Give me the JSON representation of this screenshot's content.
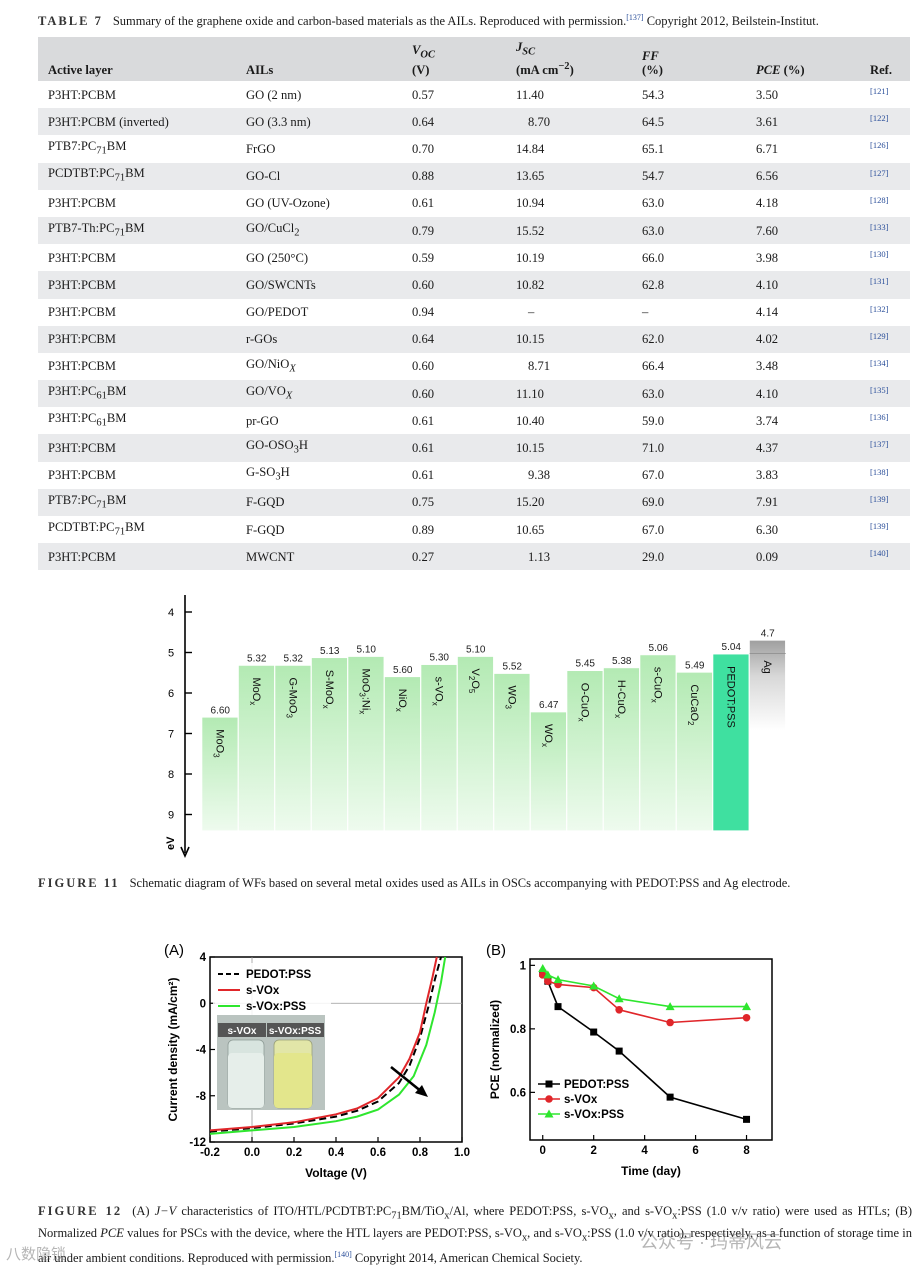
{
  "table7": {
    "label": "TABLE 7",
    "caption": "Summary of the graphene oxide and carbon-based materials as the AILs. Reproduced with permission.",
    "caption_ref": "[137]",
    "caption_tail": " Copyright 2012, Beilstein-Institut.",
    "headers": {
      "active_layer": "Active layer",
      "ails": "AILs",
      "voc": "V",
      "voc_sub": "OC",
      "voc_unit": "(V)",
      "jsc": "J",
      "jsc_sub": "SC",
      "jsc_unit": "(mA cm",
      "jsc_unit_sup": "−2",
      "jsc_unit_tail": ")",
      "ff": "FF",
      "ff_unit": "(%)",
      "pce": "PCE",
      "pce_unit": " (%)",
      "ref": "Ref."
    },
    "rows": [
      {
        "active": "P3HT:PCBM",
        "ail": "GO (2 nm)",
        "voc": "0.57",
        "jsc": "11.40",
        "ff": "54.3",
        "pce": "3.50",
        "ref": "[121]"
      },
      {
        "active": "P3HT:PCBM (inverted)",
        "ail": "GO (3.3 nm)",
        "voc": "0.64",
        "jsc": "8.70",
        "ff": "64.5",
        "pce": "3.61",
        "ref": "[122]"
      },
      {
        "active": "PTB7:PC71BM",
        "ail": "FrGO",
        "voc": "0.70",
        "jsc": "14.84",
        "ff": "65.1",
        "pce": "6.71",
        "ref": "[126]"
      },
      {
        "active": "PCDTBT:PC71BM",
        "ail": "GO-Cl",
        "voc": "0.88",
        "jsc": "13.65",
        "ff": "54.7",
        "pce": "6.56",
        "ref": "[127]"
      },
      {
        "active": "P3HT:PCBM",
        "ail": "GO (UV-Ozone)",
        "voc": "0.61",
        "jsc": "10.94",
        "ff": "63.0",
        "pce": "4.18",
        "ref": "[128]"
      },
      {
        "active": "PTB7-Th:PC71BM",
        "ail": "GO/CuCl2",
        "voc": "0.79",
        "jsc": "15.52",
        "ff": "63.0",
        "pce": "7.60",
        "ref": "[133]"
      },
      {
        "active": "P3HT:PCBM",
        "ail": "GO (250°C)",
        "voc": "0.59",
        "jsc": "10.19",
        "ff": "66.0",
        "pce": "3.98",
        "ref": "[130]"
      },
      {
        "active": "P3HT:PCBM",
        "ail": "GO/SWCNTs",
        "voc": "0.60",
        "jsc": "10.82",
        "ff": "62.8",
        "pce": "4.10",
        "ref": "[131]"
      },
      {
        "active": "P3HT:PCBM",
        "ail": "GO/PEDOT",
        "voc": "0.94",
        "jsc": "–",
        "ff": "–",
        "pce": "4.14",
        "ref": "[132]"
      },
      {
        "active": "P3HT:PCBM",
        "ail": "r-GOs",
        "voc": "0.64",
        "jsc": "10.15",
        "ff": "62.0",
        "pce": "4.02",
        "ref": "[129]"
      },
      {
        "active": "P3HT:PCBM",
        "ail": "GO/NiOX",
        "voc": "0.60",
        "jsc": "8.71",
        "ff": "66.4",
        "pce": "3.48",
        "ref": "[134]"
      },
      {
        "active": "P3HT:PC61BM",
        "ail": "GO/VOX",
        "voc": "0.60",
        "jsc": "11.10",
        "ff": "63.0",
        "pce": "4.10",
        "ref": "[135]"
      },
      {
        "active": "P3HT:PC61BM",
        "ail": "pr-GO",
        "voc": "0.61",
        "jsc": "10.40",
        "ff": "59.0",
        "pce": "3.74",
        "ref": "[136]"
      },
      {
        "active": "P3HT:PCBM",
        "ail": "GO-OSO3H",
        "voc": "0.61",
        "jsc": "10.15",
        "ff": "71.0",
        "pce": "4.37",
        "ref": "[137]"
      },
      {
        "active": "P3HT:PCBM",
        "ail": "G-SO3H",
        "voc": "0.61",
        "jsc": "9.38",
        "ff": "67.0",
        "pce": "3.83",
        "ref": "[138]"
      },
      {
        "active": "PTB7:PC71BM",
        "ail": "F-GQD",
        "voc": "0.75",
        "jsc": "15.20",
        "ff": "69.0",
        "pce": "7.91",
        "ref": "[139]"
      },
      {
        "active": "PCDTBT:PC71BM",
        "ail": "F-GQD",
        "voc": "0.89",
        "jsc": "10.65",
        "ff": "67.0",
        "pce": "6.30",
        "ref": "[139]"
      },
      {
        "active": "P3HT:PCBM",
        "ail": "MWCNT",
        "voc": "0.27",
        "jsc": "1.13",
        "ff": "29.0",
        "pce": "0.09",
        "ref": "[140]"
      }
    ]
  },
  "figure11": {
    "label": "FIGURE 11",
    "caption": "Schematic diagram of WFs based on several metal oxides used as AILs in OSCs accompanying with PEDOT:PSS and Ag electrode."
  },
  "figure12": {
    "label": "FIGURE 12",
    "caption_parts": {
      "p1": "(A) ",
      "jv": "J−V",
      "p2": " characteristics of ITO/HTL/PCDTBT:PC",
      "p2_sub": "71",
      "p3": "BM/TiO",
      "p3_sub": "x",
      "p4": "/Al, where PEDOT:PSS, s-VO",
      "p4_sub": "x",
      "p5": ", and s-VO",
      "p5_sub": "x",
      "p6": ":PSS (1.0 v/v ratio) were used as HTLs; (B) Normalized ",
      "pce": "PCE",
      "p7": " values for PSCs with the device, where the HTL layers are PEDOT:PSS, s-VO",
      "p7_sub": "x",
      "p8": ", and s-VO",
      "p8_sub": "x",
      "p9": ":PSS (1.0 v/v ratio), respectively, as a function of storage time in air under ambient conditions. Reproduced with permission.",
      "ref": "[140]",
      "p10": " Copyright 2014, American Chemical Society."
    },
    "photo_labels": [
      "s-VOx",
      "s-VOx:PSS"
    ]
  },
  "watermarks": [
    "公众号 · 玛蒂风云",
    "八数隐锁"
  ],
  "chart_data": [
    {
      "id": "fig11-wf",
      "type": "bar",
      "title": "",
      "ylabel": "eV",
      "ylim": [
        10,
        3.5
      ],
      "yticks": [
        4,
        5,
        6,
        7,
        8,
        9
      ],
      "baseline": 9.4,
      "categories": [
        "MoO3",
        "MoOx",
        "G-MoO3",
        "S-MoOx",
        "MoO3:Nix",
        "NiOx",
        "s-VOx",
        "V2O5",
        "WO3",
        "WOx",
        "O-CuOx",
        "H-CuOx",
        "s-CuOx",
        "CuCaO2",
        "PEDOT:PSS",
        "Ag"
      ],
      "values": [
        6.6,
        5.32,
        5.32,
        5.13,
        5.1,
        5.6,
        5.3,
        5.1,
        5.52,
        6.47,
        5.45,
        5.38,
        5.06,
        5.49,
        5.04,
        4.7
      ],
      "value_labels": [
        "6.60",
        "5.32",
        "5.32",
        "5.13",
        "5.10",
        "5.60",
        "5.30",
        "5.10",
        "5.52",
        "6.47",
        "5.45",
        "5.38",
        "5.06",
        "5.49",
        "5.04",
        "4.7"
      ],
      "colors": {
        "oxide": "#b8ecb8",
        "oxide_light": "#ecfaec",
        "pedot": "#3fe0a0",
        "ag": "#a6a6a6"
      }
    },
    {
      "id": "fig12a-jv",
      "type": "line",
      "panel": "(A)",
      "xlabel": "Voltage (V)",
      "ylabel": "Current density (mA/cm²)",
      "xlim": [
        -0.2,
        1.0
      ],
      "ylim": [
        -12,
        4
      ],
      "xticks": [
        "-0.2",
        "0.0",
        "0.2",
        "0.4",
        "0.6",
        "0.8",
        "1.0"
      ],
      "yticks": [
        "4",
        "0",
        "-4",
        "-8",
        "-12"
      ],
      "series": [
        {
          "name": "PEDOT:PSS",
          "style": "dashed",
          "color": "#000000",
          "x": [
            -0.2,
            0.0,
            0.2,
            0.4,
            0.5,
            0.6,
            0.7,
            0.75,
            0.8,
            0.84,
            0.87,
            0.9
          ],
          "y": [
            -11.1,
            -10.8,
            -10.4,
            -9.8,
            -9.3,
            -8.5,
            -6.9,
            -5.4,
            -3.0,
            -0.3,
            2.0,
            4.0
          ]
        },
        {
          "name": "s-VOx",
          "style": "solid",
          "color": "#e0262a",
          "x": [
            -0.2,
            0.0,
            0.2,
            0.4,
            0.5,
            0.6,
            0.7,
            0.75,
            0.8,
            0.83,
            0.86,
            0.88
          ],
          "y": [
            -11.0,
            -10.7,
            -10.3,
            -9.6,
            -9.1,
            -8.2,
            -6.4,
            -4.8,
            -2.5,
            0.0,
            2.3,
            4.0
          ]
        },
        {
          "name": "s-VOx:PSS",
          "style": "solid",
          "color": "#2ee62e",
          "x": [
            -0.2,
            0.0,
            0.2,
            0.4,
            0.5,
            0.6,
            0.7,
            0.77,
            0.83,
            0.87,
            0.9,
            0.92
          ],
          "y": [
            -11.3,
            -11.0,
            -10.7,
            -10.2,
            -9.8,
            -9.2,
            -7.9,
            -6.3,
            -3.6,
            -0.8,
            1.8,
            4.0
          ]
        }
      ],
      "annotation": "arrow toward s-VOx:PSS"
    },
    {
      "id": "fig12b-pce",
      "type": "line",
      "panel": "(B)",
      "xlabel": "Time (day)",
      "ylabel": "PCE (normalized)",
      "xlim": [
        -0.5,
        9
      ],
      "ylim": [
        0.45,
        1.02
      ],
      "xticks": [
        "0",
        "2",
        "4",
        "6",
        "8"
      ],
      "yticks": [
        "1",
        "0.8",
        "0.6"
      ],
      "series": [
        {
          "name": "PEDOT:PSS",
          "marker": "square",
          "color": "#000000",
          "x": [
            0,
            0.2,
            0.6,
            2,
            3,
            5,
            8
          ],
          "y": [
            0.975,
            0.95,
            0.87,
            0.79,
            0.73,
            0.585,
            0.515
          ]
        },
        {
          "name": "s-VOx",
          "marker": "circle",
          "color": "#e0262a",
          "x": [
            0,
            0.2,
            0.6,
            2,
            3,
            5,
            8
          ],
          "y": [
            0.97,
            0.95,
            0.94,
            0.93,
            0.86,
            0.82,
            0.835
          ]
        },
        {
          "name": "s-VOx:PSS",
          "marker": "triangle",
          "color": "#2ee62e",
          "x": [
            0,
            0.2,
            0.6,
            2,
            3,
            5,
            8
          ],
          "y": [
            0.99,
            0.97,
            0.955,
            0.935,
            0.895,
            0.87,
            0.87
          ]
        }
      ]
    }
  ]
}
